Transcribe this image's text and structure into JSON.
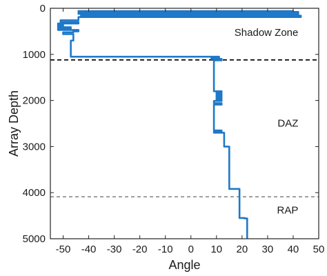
{
  "chart_data": {
    "type": "line",
    "xlabel": "Angle",
    "ylabel": "Array Depth",
    "xlim": [
      -55,
      50
    ],
    "ylim": [
      0,
      5000
    ],
    "y_inverted": true,
    "x_ticks": [
      -50,
      -40,
      -30,
      -20,
      -10,
      0,
      10,
      20,
      30,
      40,
      50
    ],
    "y_ticks": [
      0,
      1000,
      2000,
      3000,
      4000,
      5000
    ],
    "grid": false,
    "line_color": "#1f78c8",
    "series": [
      {
        "points": [
          [
            40,
            60
          ],
          [
            -44,
            60
          ],
          [
            -44,
            80
          ],
          [
            42,
            80
          ],
          [
            42,
            100
          ],
          [
            -44,
            100
          ],
          [
            -44,
            120
          ],
          [
            42,
            120
          ],
          [
            42,
            140
          ],
          [
            -43,
            140
          ],
          [
            -43,
            160
          ],
          [
            43,
            160
          ],
          [
            43,
            190
          ],
          [
            -44,
            190
          ],
          [
            -44,
            260
          ],
          [
            -51,
            260
          ],
          [
            -51,
            300
          ],
          [
            -44,
            300
          ],
          [
            -44,
            330
          ],
          [
            -52,
            330
          ],
          [
            -52,
            360
          ],
          [
            -50,
            360
          ],
          [
            -50,
            380
          ],
          [
            -52,
            380
          ],
          [
            -52,
            410
          ],
          [
            -47,
            410
          ],
          [
            -47,
            440
          ],
          [
            -52,
            440
          ],
          [
            -52,
            470
          ],
          [
            -44,
            470
          ],
          [
            -44,
            500
          ],
          [
            -46,
            500
          ],
          [
            -46,
            520
          ],
          [
            -50,
            520
          ],
          [
            -50,
            560
          ],
          [
            -46,
            560
          ],
          [
            -46,
            700
          ],
          [
            -47,
            700
          ],
          [
            -47,
            1050
          ],
          [
            11,
            1050
          ],
          [
            11,
            1080
          ],
          [
            8,
            1080
          ],
          [
            8,
            1100
          ],
          [
            12,
            1100
          ],
          [
            12,
            1130
          ],
          [
            9,
            1130
          ],
          [
            9,
            1800
          ],
          [
            12,
            1800
          ],
          [
            12,
            1830
          ],
          [
            10,
            1830
          ],
          [
            10,
            1860
          ],
          [
            12,
            1860
          ],
          [
            12,
            1890
          ],
          [
            10,
            1890
          ],
          [
            10,
            1920
          ],
          [
            12,
            1920
          ],
          [
            12,
            1950
          ],
          [
            10,
            1950
          ],
          [
            10,
            1980
          ],
          [
            12,
            1980
          ],
          [
            12,
            2010
          ],
          [
            9,
            2010
          ],
          [
            9,
            2060
          ],
          [
            12,
            2060
          ],
          [
            12,
            2090
          ],
          [
            9,
            2090
          ],
          [
            9,
            2650
          ],
          [
            12,
            2650
          ],
          [
            12,
            2680
          ],
          [
            9,
            2680
          ],
          [
            9,
            2700
          ],
          [
            13,
            2700
          ],
          [
            13,
            3000
          ],
          [
            15,
            3000
          ],
          [
            15,
            3920
          ],
          [
            19,
            3920
          ],
          [
            19,
            4550
          ],
          [
            21,
            4550
          ],
          [
            21,
            4560
          ],
          [
            22,
            4560
          ],
          [
            22,
            5000
          ]
        ]
      }
    ],
    "reference_lines": [
      {
        "y": 1120,
        "style": "dashed",
        "color": "#111111"
      },
      {
        "y": 4090,
        "style": "dashed",
        "color": "#555555"
      }
    ],
    "annotations": [
      {
        "text": "Shadow Zone",
        "x": 42,
        "y": 600
      },
      {
        "text": "DAZ",
        "x": 42,
        "y": 2570
      },
      {
        "text": "RAP",
        "x": 42,
        "y": 4450
      }
    ]
  }
}
